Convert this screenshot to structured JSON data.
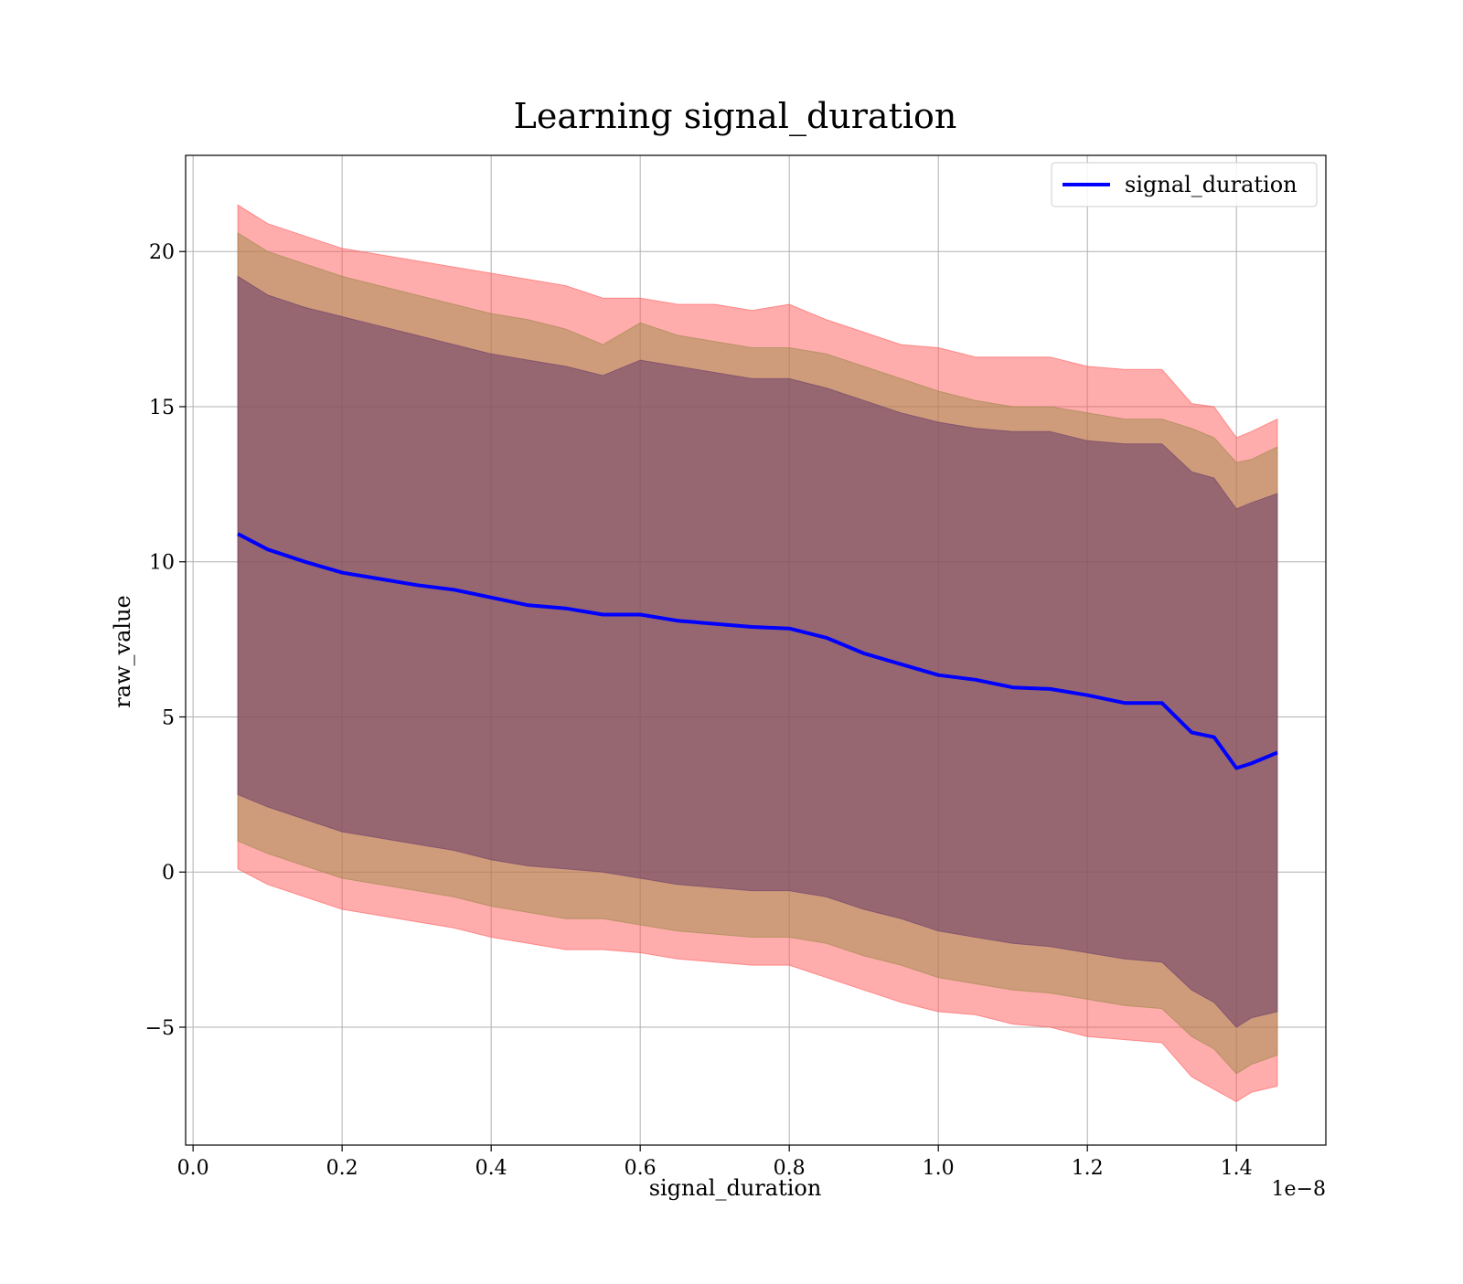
{
  "chart_data": {
    "type": "area",
    "title": "Learning signal_duration",
    "xlabel": "signal_duration",
    "ylabel": "raw_value",
    "x_offset_label": "1e−8",
    "xlim": [
      -0.01,
      1.52
    ],
    "ylim": [
      -8.8,
      23.1
    ],
    "x_ticks": [
      0.0,
      0.2,
      0.4,
      0.6,
      0.8,
      1.0,
      1.2,
      1.4
    ],
    "x_tick_labels": [
      "0.0",
      "0.2",
      "0.4",
      "0.6",
      "0.8",
      "1.0",
      "1.2",
      "1.4"
    ],
    "y_ticks": [
      -5,
      0,
      5,
      10,
      15,
      20
    ],
    "y_tick_labels": [
      "−5",
      "0",
      "5",
      "10",
      "15",
      "20"
    ],
    "grid": true,
    "legend": {
      "position": "top-right",
      "entries": [
        "signal_duration"
      ]
    },
    "colors": {
      "line": "#0000ff",
      "band_outer": "#ff5a5a",
      "band_middle": "#9e8a4a",
      "band_inner": "#6a3c6a"
    },
    "series": [
      {
        "name": "signal_duration",
        "x": [
          0.06,
          0.1,
          0.15,
          0.2,
          0.25,
          0.3,
          0.35,
          0.4,
          0.45,
          0.5,
          0.55,
          0.6,
          0.65,
          0.7,
          0.75,
          0.8,
          0.85,
          0.9,
          0.95,
          1.0,
          1.05,
          1.1,
          1.15,
          1.2,
          1.25,
          1.3,
          1.34,
          1.37,
          1.4,
          1.42,
          1.455
        ],
        "values": [
          10.9,
          10.4,
          10.0,
          9.65,
          9.45,
          9.25,
          9.1,
          8.85,
          8.6,
          8.5,
          8.3,
          8.3,
          8.1,
          8.0,
          7.9,
          7.85,
          7.55,
          7.05,
          6.7,
          6.35,
          6.2,
          5.95,
          5.9,
          5.7,
          5.45,
          5.45,
          4.5,
          4.35,
          3.35,
          3.5,
          3.85
        ],
        "band_outer_upper": [
          21.5,
          20.9,
          20.5,
          20.1,
          19.9,
          19.7,
          19.5,
          19.3,
          19.1,
          18.9,
          18.5,
          18.5,
          18.3,
          18.3,
          18.1,
          18.3,
          17.8,
          17.4,
          17.0,
          16.9,
          16.6,
          16.6,
          16.6,
          16.3,
          16.2,
          16.2,
          15.1,
          15.0,
          14.0,
          14.2,
          14.6
        ],
        "band_middle_upper": [
          20.6,
          20.0,
          19.6,
          19.2,
          18.9,
          18.6,
          18.3,
          18.0,
          17.8,
          17.5,
          17.0,
          17.7,
          17.3,
          17.1,
          16.9,
          16.9,
          16.7,
          16.3,
          15.9,
          15.5,
          15.2,
          15.0,
          15.0,
          14.8,
          14.6,
          14.6,
          14.3,
          14.0,
          13.2,
          13.3,
          13.7
        ],
        "band_inner_upper": [
          19.2,
          18.6,
          18.2,
          17.9,
          17.6,
          17.3,
          17.0,
          16.7,
          16.5,
          16.3,
          16.0,
          16.5,
          16.3,
          16.1,
          15.9,
          15.9,
          15.6,
          15.2,
          14.8,
          14.5,
          14.3,
          14.2,
          14.2,
          13.9,
          13.8,
          13.8,
          12.9,
          12.7,
          11.7,
          11.9,
          12.2
        ],
        "band_inner_lower": [
          2.5,
          2.1,
          1.7,
          1.3,
          1.1,
          0.9,
          0.7,
          0.4,
          0.2,
          0.1,
          0.0,
          -0.2,
          -0.4,
          -0.5,
          -0.6,
          -0.6,
          -0.8,
          -1.2,
          -1.5,
          -1.9,
          -2.1,
          -2.3,
          -2.4,
          -2.6,
          -2.8,
          -2.9,
          -3.8,
          -4.2,
          -5.0,
          -4.7,
          -4.5
        ],
        "band_middle_lower": [
          1.0,
          0.6,
          0.2,
          -0.2,
          -0.4,
          -0.6,
          -0.8,
          -1.1,
          -1.3,
          -1.5,
          -1.5,
          -1.7,
          -1.9,
          -2.0,
          -2.1,
          -2.1,
          -2.3,
          -2.7,
          -3.0,
          -3.4,
          -3.6,
          -3.8,
          -3.9,
          -4.1,
          -4.3,
          -4.4,
          -5.3,
          -5.7,
          -6.5,
          -6.2,
          -5.9
        ],
        "band_outer_lower": [
          0.1,
          -0.4,
          -0.8,
          -1.2,
          -1.4,
          -1.6,
          -1.8,
          -2.1,
          -2.3,
          -2.5,
          -2.5,
          -2.6,
          -2.8,
          -2.9,
          -3.0,
          -3.0,
          -3.4,
          -3.8,
          -4.2,
          -4.5,
          -4.6,
          -4.9,
          -5.0,
          -5.3,
          -5.4,
          -5.5,
          -6.6,
          -7.0,
          -7.4,
          -7.1,
          -6.9
        ]
      }
    ]
  }
}
